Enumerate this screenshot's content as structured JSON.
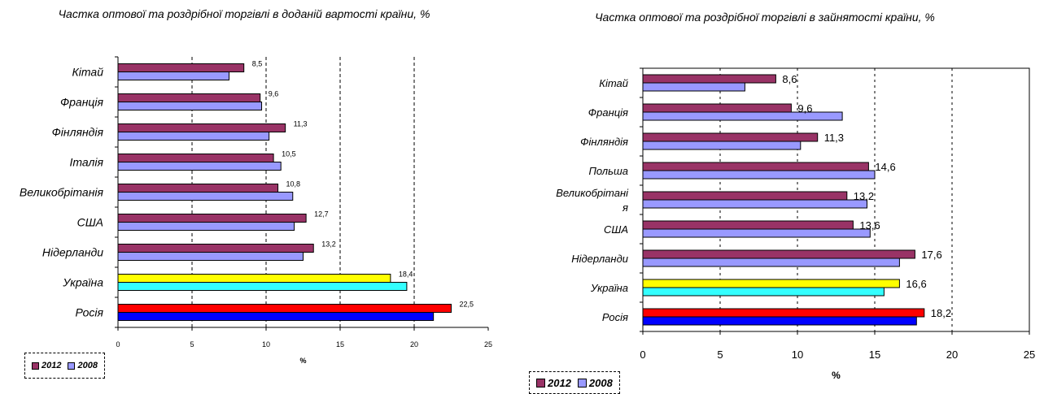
{
  "chart_data": [
    {
      "type": "bar",
      "orientation": "horizontal",
      "title": "Частка оптової та роздрібної торгівлі  в доданій вартості країни,  %",
      "xlabel": "%",
      "xlim": [
        0,
        25
      ],
      "xticks": [
        "0",
        "5",
        "10",
        "15",
        "20",
        "25"
      ],
      "grid": "dashed vertical",
      "categories": [
        "Кітай",
        "Франція",
        "Фінляндія",
        "Італія",
        "Великобрітанія",
        "США",
        "Нідерланди",
        "Україна",
        "Росія"
      ],
      "series": [
        {
          "name": "2012",
          "color": "#993366",
          "values": [
            8.5,
            9.6,
            11.3,
            10.5,
            10.8,
            12.7,
            13.2,
            18.4,
            22.5
          ]
        },
        {
          "name": "2008",
          "color": "#9999ff",
          "values": [
            7.5,
            9.7,
            10.2,
            11.0,
            11.8,
            11.9,
            12.5,
            19.5,
            21.3
          ]
        }
      ],
      "highlight_colors": {
        "Україна": {
          "2012": "#ffff00",
          "2008": "#33ffff"
        },
        "Росія": {
          "2012": "#ff0000",
          "2008": "#0000ff"
        }
      },
      "data_labels": [
        "8,5",
        "9,6",
        "11,3",
        "10,5",
        "10,8",
        "12,7",
        "13,2",
        "18,4",
        "22,5"
      ],
      "legend_position": "bottom-left"
    },
    {
      "type": "bar",
      "orientation": "horizontal",
      "title": "Частка оптової та роздрібної торгівлі в зайнятості країни, %",
      "xlabel": "%",
      "xlim": [
        0,
        25
      ],
      "xticks": [
        "0",
        "5",
        "10",
        "15",
        "20",
        "25"
      ],
      "grid": "dashed vertical",
      "categories": [
        "Кітай",
        "Франція",
        "Фінляндія",
        "Польша",
        "Великобрітані я",
        "США",
        "Нідерланди",
        "Україна",
        "Росія"
      ],
      "series": [
        {
          "name": "2012",
          "color": "#993366",
          "values": [
            8.6,
            9.6,
            11.3,
            14.6,
            13.2,
            13.6,
            17.6,
            16.6,
            18.2
          ]
        },
        {
          "name": "2008",
          "color": "#9999ff",
          "values": [
            6.6,
            12.9,
            10.2,
            15.0,
            14.5,
            14.7,
            16.6,
            15.6,
            17.7
          ]
        }
      ],
      "highlight_colors": {
        "Україна": {
          "2012": "#ffff00",
          "2008": "#33ffff"
        },
        "Росія": {
          "2012": "#ff0000",
          "2008": "#0000ff"
        }
      },
      "data_labels": [
        "8,6",
        "9,6",
        "11,3",
        "14,6",
        "13,2",
        "13,6",
        "17,6",
        "16,6",
        "18,2"
      ],
      "legend_position": "bottom-left"
    }
  ],
  "legend": {
    "label_2012": "2012",
    "label_2008": "2008"
  }
}
